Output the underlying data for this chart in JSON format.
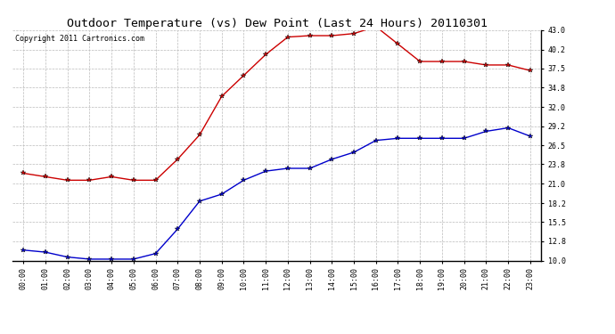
{
  "title": "Outdoor Temperature (vs) Dew Point (Last 24 Hours) 20110301",
  "copyright": "Copyright 2011 Cartronics.com",
  "hours": [
    "00:00",
    "01:00",
    "02:00",
    "03:00",
    "04:00",
    "05:00",
    "06:00",
    "07:00",
    "08:00",
    "09:00",
    "10:00",
    "11:00",
    "12:00",
    "13:00",
    "14:00",
    "15:00",
    "16:00",
    "17:00",
    "18:00",
    "19:00",
    "20:00",
    "21:00",
    "22:00",
    "23:00"
  ],
  "temp": [
    22.5,
    22.0,
    21.5,
    21.5,
    22.0,
    21.5,
    21.5,
    24.5,
    28.0,
    33.5,
    36.5,
    39.5,
    42.0,
    42.2,
    42.2,
    42.5,
    43.5,
    41.0,
    38.5,
    38.5,
    38.5,
    38.0,
    38.0,
    37.2
  ],
  "dew": [
    11.5,
    11.2,
    10.5,
    10.2,
    10.2,
    10.2,
    11.0,
    14.5,
    18.5,
    19.5,
    21.5,
    22.8,
    23.2,
    23.2,
    24.5,
    25.5,
    27.2,
    27.5,
    27.5,
    27.5,
    27.5,
    28.5,
    29.0,
    27.8
  ],
  "temp_color": "#cc0000",
  "dew_color": "#0000cc",
  "marker": "*",
  "marker_size": 4,
  "linewidth": 1.0,
  "ylim_min": 10.0,
  "ylim_max": 43.0,
  "yticks": [
    10.0,
    12.8,
    15.5,
    18.2,
    21.0,
    23.8,
    26.5,
    29.2,
    32.0,
    34.8,
    37.5,
    40.2,
    43.0
  ],
  "bg_color": "#ffffff",
  "grid_color": "#bbbbbb",
  "title_fontsize": 9.5,
  "tick_fontsize": 6,
  "copyright_fontsize": 6
}
